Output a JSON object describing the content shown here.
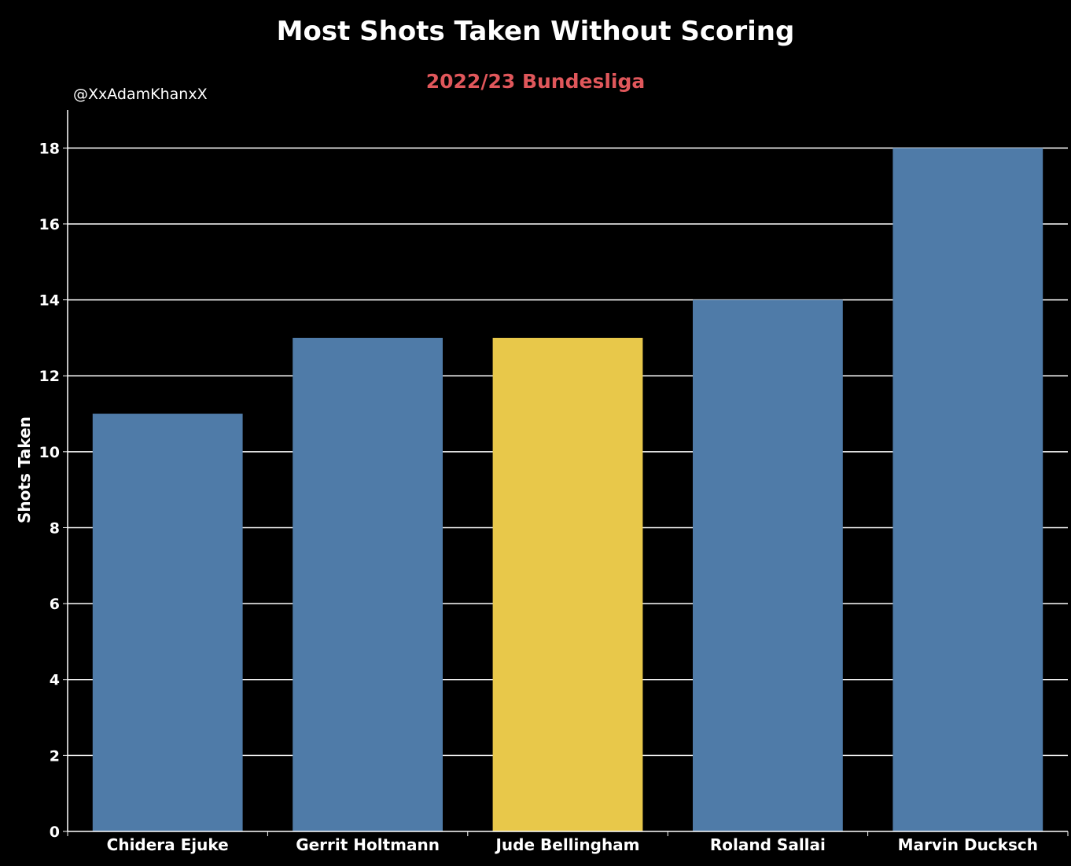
{
  "chart_data": {
    "type": "bar",
    "title": "Most Shots Taken Without Scoring",
    "subtitle": "2022/23 Bundesliga",
    "watermark": "@XxAdamKhanxX",
    "xlabel": "",
    "ylabel": "Shots Taken",
    "categories": [
      "Chidera Ejuke",
      "Gerrit Holtmann",
      "Jude Bellingham",
      "Roland Sallai",
      "Marvin Ducksch"
    ],
    "values": [
      11,
      13,
      13,
      14,
      18
    ],
    "highlight": "Jude Bellingham",
    "ylim": [
      0,
      19
    ],
    "yticks": [
      "0",
      "2",
      "4",
      "6",
      "8",
      "10",
      "12",
      "14",
      "16",
      "18"
    ],
    "grid": "horizontal",
    "colors": {
      "background": "#000000",
      "bar": "#4f7ba8",
      "highlight_bar": "#e8c84a",
      "subtitle": "#e0575b",
      "text": "#ffffff",
      "grid": "#ffffff"
    }
  }
}
